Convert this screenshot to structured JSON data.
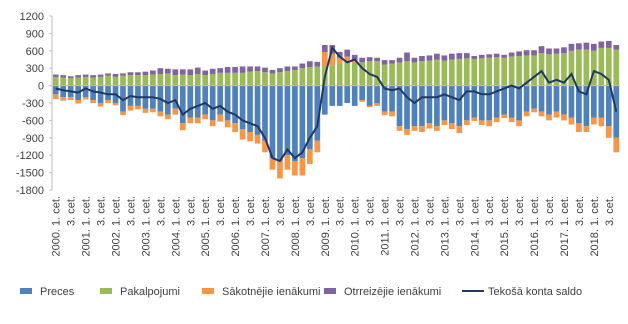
{
  "chart_data": {
    "type": "bar",
    "stacked": true,
    "categories": [
      "2000. 1. cet.",
      null,
      "3. cet.",
      null,
      "2001. 1. cet.",
      null,
      "3. cet.",
      null,
      "2002. 1. cet.",
      null,
      "3. cet.",
      null,
      "2003. 1. cet.",
      null,
      "3. cet.",
      null,
      "2004. 1. cet.",
      null,
      "3. cet.",
      null,
      "2005. 1. cet.",
      null,
      "3. cet.",
      null,
      "2006. 1. cet.",
      null,
      "3. cet.",
      null,
      "2007. 1. cet.",
      null,
      "3. cet.",
      null,
      "2008. 1. cet.",
      null,
      "3. cet.",
      null,
      "2009. 1. cet.",
      null,
      "3. cet.",
      null,
      "2010. 1. cet.",
      null,
      "3. cet.",
      null,
      "2011. 1. cet.",
      null,
      "3. cet.",
      null,
      "2012. 1. cet.",
      null,
      "3. cet.",
      null,
      "2013. 1. cet.",
      null,
      "3. cet.",
      null,
      "2014. 1. cet.",
      null,
      "3. cet.",
      null,
      "2015. 1. cet.",
      null,
      "3. cet.",
      null,
      "2016. 1. cet.",
      null,
      "3. cet.",
      null,
      "2017. 1. cet.",
      null,
      "3. cet.",
      null,
      "2018. 1. cet.",
      null,
      "3. cet.",
      null
    ],
    "series": [
      {
        "name": "Preces",
        "type": "bar",
        "color": "#4f81bd",
        "values": [
          -150,
          -200,
          -200,
          -250,
          -200,
          -250,
          -300,
          -250,
          -300,
          -450,
          -350,
          -350,
          -400,
          -400,
          -450,
          -500,
          -400,
          -650,
          -550,
          -550,
          -500,
          -600,
          -500,
          -600,
          -650,
          -750,
          -800,
          -850,
          -950,
          -1250,
          -1300,
          -1200,
          -1300,
          -1250,
          -1100,
          -950,
          -500,
          -350,
          -350,
          -300,
          -350,
          -250,
          -350,
          -300,
          -450,
          -450,
          -700,
          -750,
          -700,
          -700,
          -650,
          -700,
          -600,
          -650,
          -700,
          -600,
          -550,
          -600,
          -600,
          -550,
          -500,
          -550,
          -600,
          -450,
          -400,
          -450,
          -500,
          -450,
          -500,
          -550,
          -650,
          -700,
          -550,
          -550,
          -700,
          -900
        ]
      },
      {
        "name": "Pakalpojumi",
        "type": "bar",
        "color": "#9bbb59",
        "values": [
          150,
          140,
          130,
          140,
          150,
          140,
          150,
          170,
          150,
          170,
          180,
          180,
          180,
          190,
          200,
          210,
          180,
          190,
          180,
          200,
          180,
          200,
          220,
          220,
          220,
          220,
          240,
          250,
          230,
          210,
          230,
          250,
          270,
          300,
          320,
          330,
          330,
          350,
          380,
          400,
          380,
          400,
          420,
          420,
          360,
          380,
          400,
          420,
          400,
          420,
          430,
          450,
          430,
          450,
          460,
          470,
          460,
          470,
          480,
          490,
          480,
          500,
          510,
          520,
          520,
          560,
          540,
          550,
          560,
          600,
          620,
          620,
          600,
          650,
          650,
          620
        ]
      },
      {
        "name": "Sākotnējie ienākumi",
        "type": "bar",
        "color": "#f79646",
        "values": [
          -80,
          -60,
          -50,
          -60,
          -40,
          -50,
          -60,
          -50,
          -40,
          -60,
          -80,
          -60,
          -70,
          -60,
          -80,
          -80,
          -100,
          -120,
          -100,
          -100,
          -80,
          -100,
          -120,
          -120,
          -150,
          -180,
          -160,
          -150,
          -200,
          -200,
          -300,
          -250,
          -250,
          -300,
          -250,
          -200,
          250,
          200,
          100,
          100,
          50,
          -30,
          -20,
          -50,
          -60,
          -80,
          -80,
          -100,
          -80,
          -100,
          -90,
          -80,
          -80,
          -100,
          -120,
          -80,
          -60,
          -80,
          -100,
          -80,
          -60,
          -80,
          -100,
          -80,
          -60,
          -80,
          -100,
          -100,
          -100,
          -120,
          -150,
          -100,
          -120,
          -150,
          -200,
          -250
        ]
      },
      {
        "name": "Otrreizējie ienākumi",
        "type": "bar",
        "color": "#8064a2",
        "values": [
          40,
          40,
          30,
          40,
          40,
          40,
          40,
          40,
          50,
          40,
          50,
          50,
          60,
          70,
          100,
          80,
          100,
          90,
          100,
          110,
          80,
          90,
          80,
          100,
          100,
          110,
          90,
          80,
          80,
          60,
          70,
          80,
          60,
          80,
          100,
          80,
          120,
          150,
          100,
          120,
          100,
          80,
          70,
          60,
          80,
          60,
          80,
          150,
          80,
          90,
          90,
          100,
          90,
          100,
          100,
          90,
          50,
          60,
          60,
          60,
          50,
          70,
          80,
          90,
          90,
          120,
          100,
          90,
          100,
          120,
          110,
          120,
          120,
          110,
          120,
          80
        ]
      },
      {
        "name": "Tekošā konta saldo",
        "type": "line",
        "color": "#1f3864",
        "values": [
          -50,
          -80,
          -100,
          -120,
          -50,
          -100,
          -120,
          -150,
          -150,
          -250,
          -180,
          -200,
          -200,
          -200,
          -230,
          -300,
          -250,
          -500,
          -400,
          -350,
          -300,
          -400,
          -350,
          -450,
          -500,
          -600,
          -650,
          -700,
          -900,
          -1250,
          -1300,
          -1100,
          -1250,
          -1150,
          -900,
          -700,
          150,
          650,
          500,
          400,
          450,
          300,
          200,
          150,
          -50,
          -80,
          -50,
          -200,
          -300,
          -200,
          -200,
          -200,
          -150,
          -200,
          -250,
          -100,
          -100,
          -150,
          -150,
          -100,
          -50,
          0,
          -50,
          50,
          150,
          250,
          50,
          100,
          50,
          200,
          -100,
          -150,
          250,
          200,
          100,
          -450
        ]
      }
    ],
    "ylim": [
      -1800,
      1200
    ],
    "yticks": [
      -1800,
      -1500,
      -1200,
      -900,
      -600,
      -300,
      0,
      300,
      600,
      900,
      1200
    ],
    "grid": false,
    "legend": "bottom"
  }
}
